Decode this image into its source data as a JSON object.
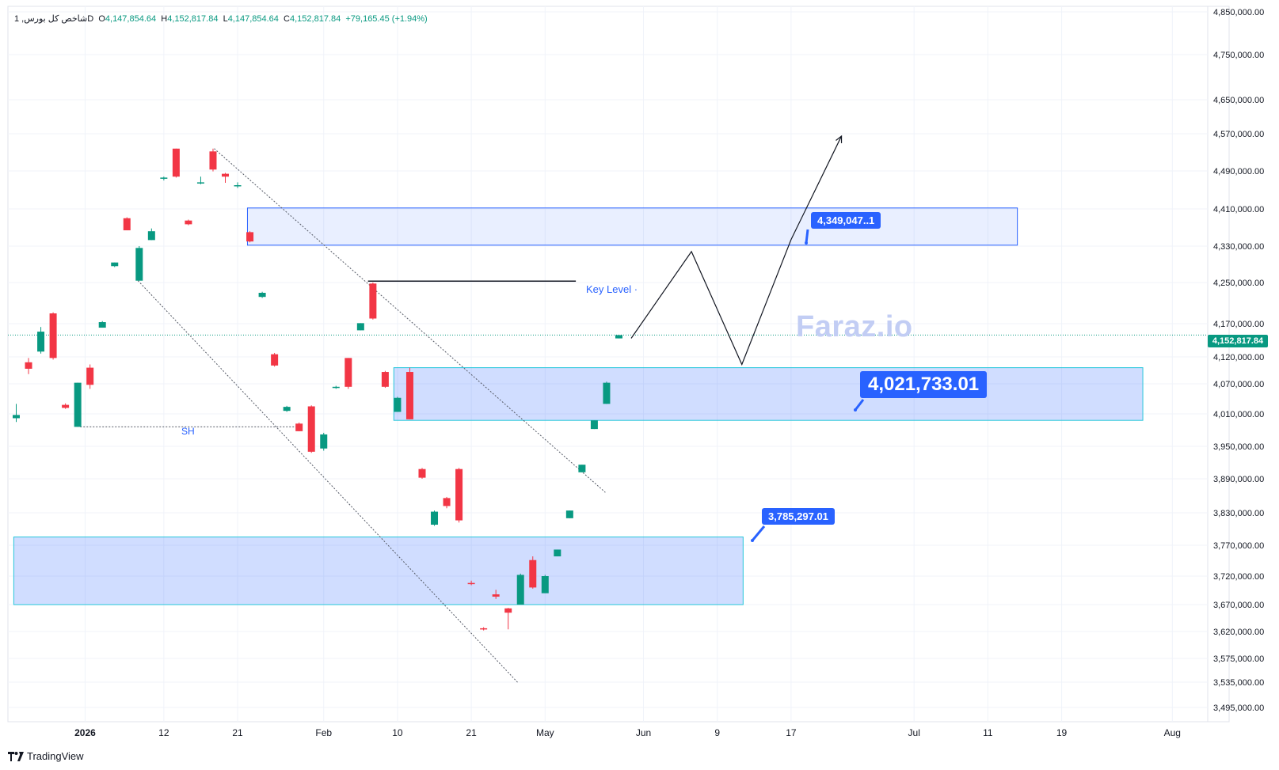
{
  "header": {
    "symbol": "شاخص کل بورس, 1D",
    "o_label": "O",
    "o_value": "4,147,854.64",
    "h_label": "H",
    "h_value": "4,152,817.84",
    "l_label": "L",
    "l_value": "4,147,854.64",
    "c_label": "C",
    "c_value": "4,152,817.84",
    "change": "+79,165.45 (+1.94%)"
  },
  "watermark": "Faraz.io",
  "footer": {
    "brand": "TradingView"
  },
  "annotations": {
    "callout_top": "4,349,047..1",
    "callout_mid": "4,021,733.01",
    "callout_bottom": "3,785,297.01",
    "key_level": "Key Level ·",
    "sh": "SH"
  },
  "last_price_tag": "4,152,817.84",
  "colors": {
    "up": "#089981",
    "down": "#f23645",
    "zone": "#2962ff",
    "accent": "#2962ff"
  },
  "chart_data": {
    "type": "candlestick",
    "title": "شاخص کل بورس, 1D",
    "y_ticks": [
      4850000,
      4750000,
      4650000,
      4570000,
      4490000,
      4410000,
      4330000,
      4250000,
      4170000,
      4120000,
      4070000,
      4010000,
      3950000,
      3890000,
      3830000,
      3770000,
      3720000,
      3670000,
      3620000,
      3575000,
      3535000,
      3495000
    ],
    "y_tick_labels": [
      "4,850,000.00",
      "4,750,000.00",
      "4,650,000.00",
      "4,570,000.00",
      "4,490,000.00",
      "4,410,000.00",
      "4,330,000.00",
      "4,250,000.00",
      "4,170,000.00",
      "4,120,000.00",
      "4,070,000.00",
      "4,010,000.00",
      "3,950,000.00",
      "3,890,000.00",
      "3,830,000.00",
      "3,770,000.00",
      "3,720,000.00",
      "3,670,000.00",
      "3,620,000.00",
      "3,575,000.00",
      "3,535,000.00",
      "3,495,000.00"
    ],
    "x_ticks": [
      {
        "label": "2026",
        "bold": true,
        "i": 5.6
      },
      {
        "label": "12",
        "i": 12
      },
      {
        "label": "21",
        "i": 18
      },
      {
        "label": "Feb",
        "i": 25
      },
      {
        "label": "10",
        "i": 31
      },
      {
        "label": "21",
        "i": 37
      },
      {
        "label": "May",
        "i": 43
      },
      {
        "label": "Jun",
        "i": 51
      },
      {
        "label": "9",
        "i": 57
      },
      {
        "label": "17",
        "i": 63
      },
      {
        "label": "Jul",
        "i": 73
      },
      {
        "label": "11",
        "i": 79
      },
      {
        "label": "19",
        "i": 85
      },
      {
        "label": "Aug",
        "i": 94
      }
    ],
    "candles": [
      {
        "i": 0,
        "o": 4002000,
        "h": 4030000,
        "l": 3995000,
        "c": 4008000
      },
      {
        "i": 1,
        "o": 4110000,
        "h": 4118000,
        "l": 4088000,
        "c": 4098000
      },
      {
        "i": 2,
        "o": 4128000,
        "h": 4165000,
        "l": 4125000,
        "c": 4158000
      },
      {
        "i": 3,
        "o": 4190000,
        "h": 4192000,
        "l": 4115000,
        "c": 4118000
      },
      {
        "i": 4,
        "o": 4028000,
        "h": 4031000,
        "l": 4020000,
        "c": 4022000
      },
      {
        "i": 5,
        "o": 3986000,
        "h": 4072000,
        "l": 3986000,
        "c": 4072000
      },
      {
        "i": 6,
        "o": 4100000,
        "h": 4106000,
        "l": 4060000,
        "c": 4068000
      },
      {
        "i": 7,
        "o": 4164000,
        "h": 4175000,
        "l": 4164000,
        "c": 4173000
      },
      {
        "i": 8,
        "o": 4286000,
        "h": 4294000,
        "l": 4284000,
        "c": 4294000
      },
      {
        "i": 9,
        "o": 4390000,
        "h": 4392000,
        "l": 4364000,
        "c": 4364000
      },
      {
        "i": 10,
        "o": 4254000,
        "h": 4330000,
        "l": 4254000,
        "c": 4326000
      },
      {
        "i": 11,
        "o": 4343000,
        "h": 4368000,
        "l": 4343000,
        "c": 4362000
      },
      {
        "i": 12,
        "o": 4475000,
        "h": 4478000,
        "l": 4470000,
        "c": 4476000
      },
      {
        "i": 13,
        "o": 4538000,
        "h": 4538000,
        "l": 4476000,
        "c": 4478000
      },
      {
        "i": 14,
        "o": 4385000,
        "h": 4387000,
        "l": 4375000,
        "c": 4377000
      },
      {
        "i": 15,
        "o": 4465000,
        "h": 4478000,
        "l": 4462000,
        "c": 4466000
      },
      {
        "i": 16,
        "o": 4532000,
        "h": 4538000,
        "l": 4489000,
        "c": 4493000
      },
      {
        "i": 17,
        "o": 4484000,
        "h": 4486000,
        "l": 4465000,
        "c": 4478000
      },
      {
        "i": 18,
        "o": 4458000,
        "h": 4466000,
        "l": 4454000,
        "c": 4460000
      },
      {
        "i": 19,
        "o": 4360000,
        "h": 4362000,
        "l": 4338000,
        "c": 4340000
      },
      {
        "i": 20,
        "o": 4222000,
        "h": 4232000,
        "l": 4220000,
        "c": 4230000
      },
      {
        "i": 21,
        "o": 4124000,
        "h": 4126000,
        "l": 4102000,
        "c": 4104000
      },
      {
        "i": 22,
        "o": 4016000,
        "h": 4026000,
        "l": 4014000,
        "c": 4024000
      },
      {
        "i": 23,
        "o": 3992000,
        "h": 3994000,
        "l": 3978000,
        "c": 3978000
      },
      {
        "i": 24,
        "o": 4025000,
        "h": 4027000,
        "l": 3938000,
        "c": 3940000
      },
      {
        "i": 25,
        "o": 3946000,
        "h": 3975000,
        "l": 3942000,
        "c": 3972000
      },
      {
        "i": 26,
        "o": 4062000,
        "h": 4066000,
        "l": 4060000,
        "c": 4064000
      },
      {
        "i": 27,
        "o": 4118000,
        "h": 4118000,
        "l": 4060000,
        "c": 4064000
      },
      {
        "i": 28,
        "o": 4160000,
        "h": 4171000,
        "l": 4160000,
        "c": 4171000
      },
      {
        "i": 29,
        "o": 4248000,
        "h": 4250000,
        "l": 4178000,
        "c": 4180000
      },
      {
        "i": 30,
        "o": 4092000,
        "h": 4094000,
        "l": 4062000,
        "c": 4064000
      },
      {
        "i": 31,
        "o": 4014000,
        "h": 4044000,
        "l": 4014000,
        "c": 4042000
      },
      {
        "i": 32,
        "o": 4092000,
        "h": 4100000,
        "l": 4000000,
        "c": 4000000
      },
      {
        "i": 33,
        "o": 3908000,
        "h": 3910000,
        "l": 3890000,
        "c": 3892000
      },
      {
        "i": 34,
        "o": 3808000,
        "h": 3834000,
        "l": 3806000,
        "c": 3832000
      },
      {
        "i": 35,
        "o": 3856000,
        "h": 3858000,
        "l": 3838000,
        "c": 3842000
      },
      {
        "i": 36,
        "o": 3908000,
        "h": 3910000,
        "l": 3812000,
        "c": 3816000
      },
      {
        "i": 37,
        "o": 3708000,
        "h": 3712000,
        "l": 3704000,
        "c": 3706000
      },
      {
        "i": 38,
        "o": 3626000,
        "h": 3628000,
        "l": 3622000,
        "c": 3624000
      },
      {
        "i": 39,
        "o": 3688000,
        "h": 3696000,
        "l": 3680000,
        "c": 3684000
      },
      {
        "i": 40,
        "o": 3663000,
        "h": 3664000,
        "l": 3624000,
        "c": 3655000
      },
      {
        "i": 41,
        "o": 3670000,
        "h": 3724000,
        "l": 3670000,
        "c": 3722000
      },
      {
        "i": 42,
        "o": 3746000,
        "h": 3752000,
        "l": 3698000,
        "c": 3700000
      },
      {
        "i": 43,
        "o": 3690000,
        "h": 3722000,
        "l": 3690000,
        "c": 3720000
      },
      {
        "i": 44,
        "o": 3752000,
        "h": 3763000,
        "l": 3752000,
        "c": 3763000
      },
      {
        "i": 45,
        "o": 3820000,
        "h": 3834000,
        "l": 3820000,
        "c": 3834000
      },
      {
        "i": 46,
        "o": 3902000,
        "h": 3916000,
        "l": 3902000,
        "c": 3916000
      },
      {
        "i": 47,
        "o": 3982000,
        "h": 3998000,
        "l": 3982000,
        "c": 3998000
      },
      {
        "i": 48,
        "o": 4030000,
        "h": 4074000,
        "l": 4030000,
        "c": 4072000
      },
      {
        "i": 49,
        "o": 4147855,
        "h": 4152818,
        "l": 4147855,
        "c": 4152818
      }
    ],
    "zones": [
      {
        "i0": 18.8,
        "i1": 81.4,
        "p0": 4332000,
        "p1": 4412000
      },
      {
        "i0": 30.7,
        "i1": 91.6,
        "p0": 3998000,
        "p1": 4100000
      },
      {
        "i0": -0.2,
        "i1": 59.1,
        "p0": 3670000,
        "p1": 3785297
      }
    ],
    "key_level": {
      "i0": 28.6,
      "i1": 45.5,
      "p": 4253000
    },
    "sh_level": {
      "i0": 5.2,
      "i1": 22.8,
      "p": 3986000
    },
    "channel_lines": [
      {
        "i0": 9.9,
        "p0": 4254000,
        "i1": 40.8,
        "p1": 3534000
      },
      {
        "i0": 16.1,
        "p0": 4538000,
        "i1": 47.9,
        "p1": 3866000
      }
    ],
    "last_price": 4152817.84,
    "projection": [
      {
        "i": 50.0,
        "p": 4148000
      },
      {
        "i": 54.9,
        "p": 4318000
      },
      {
        "i": 59.0,
        "p": 4106000
      },
      {
        "i": 63.0,
        "p": 4344000
      },
      {
        "i": 67.1,
        "p": 4565000
      }
    ]
  }
}
